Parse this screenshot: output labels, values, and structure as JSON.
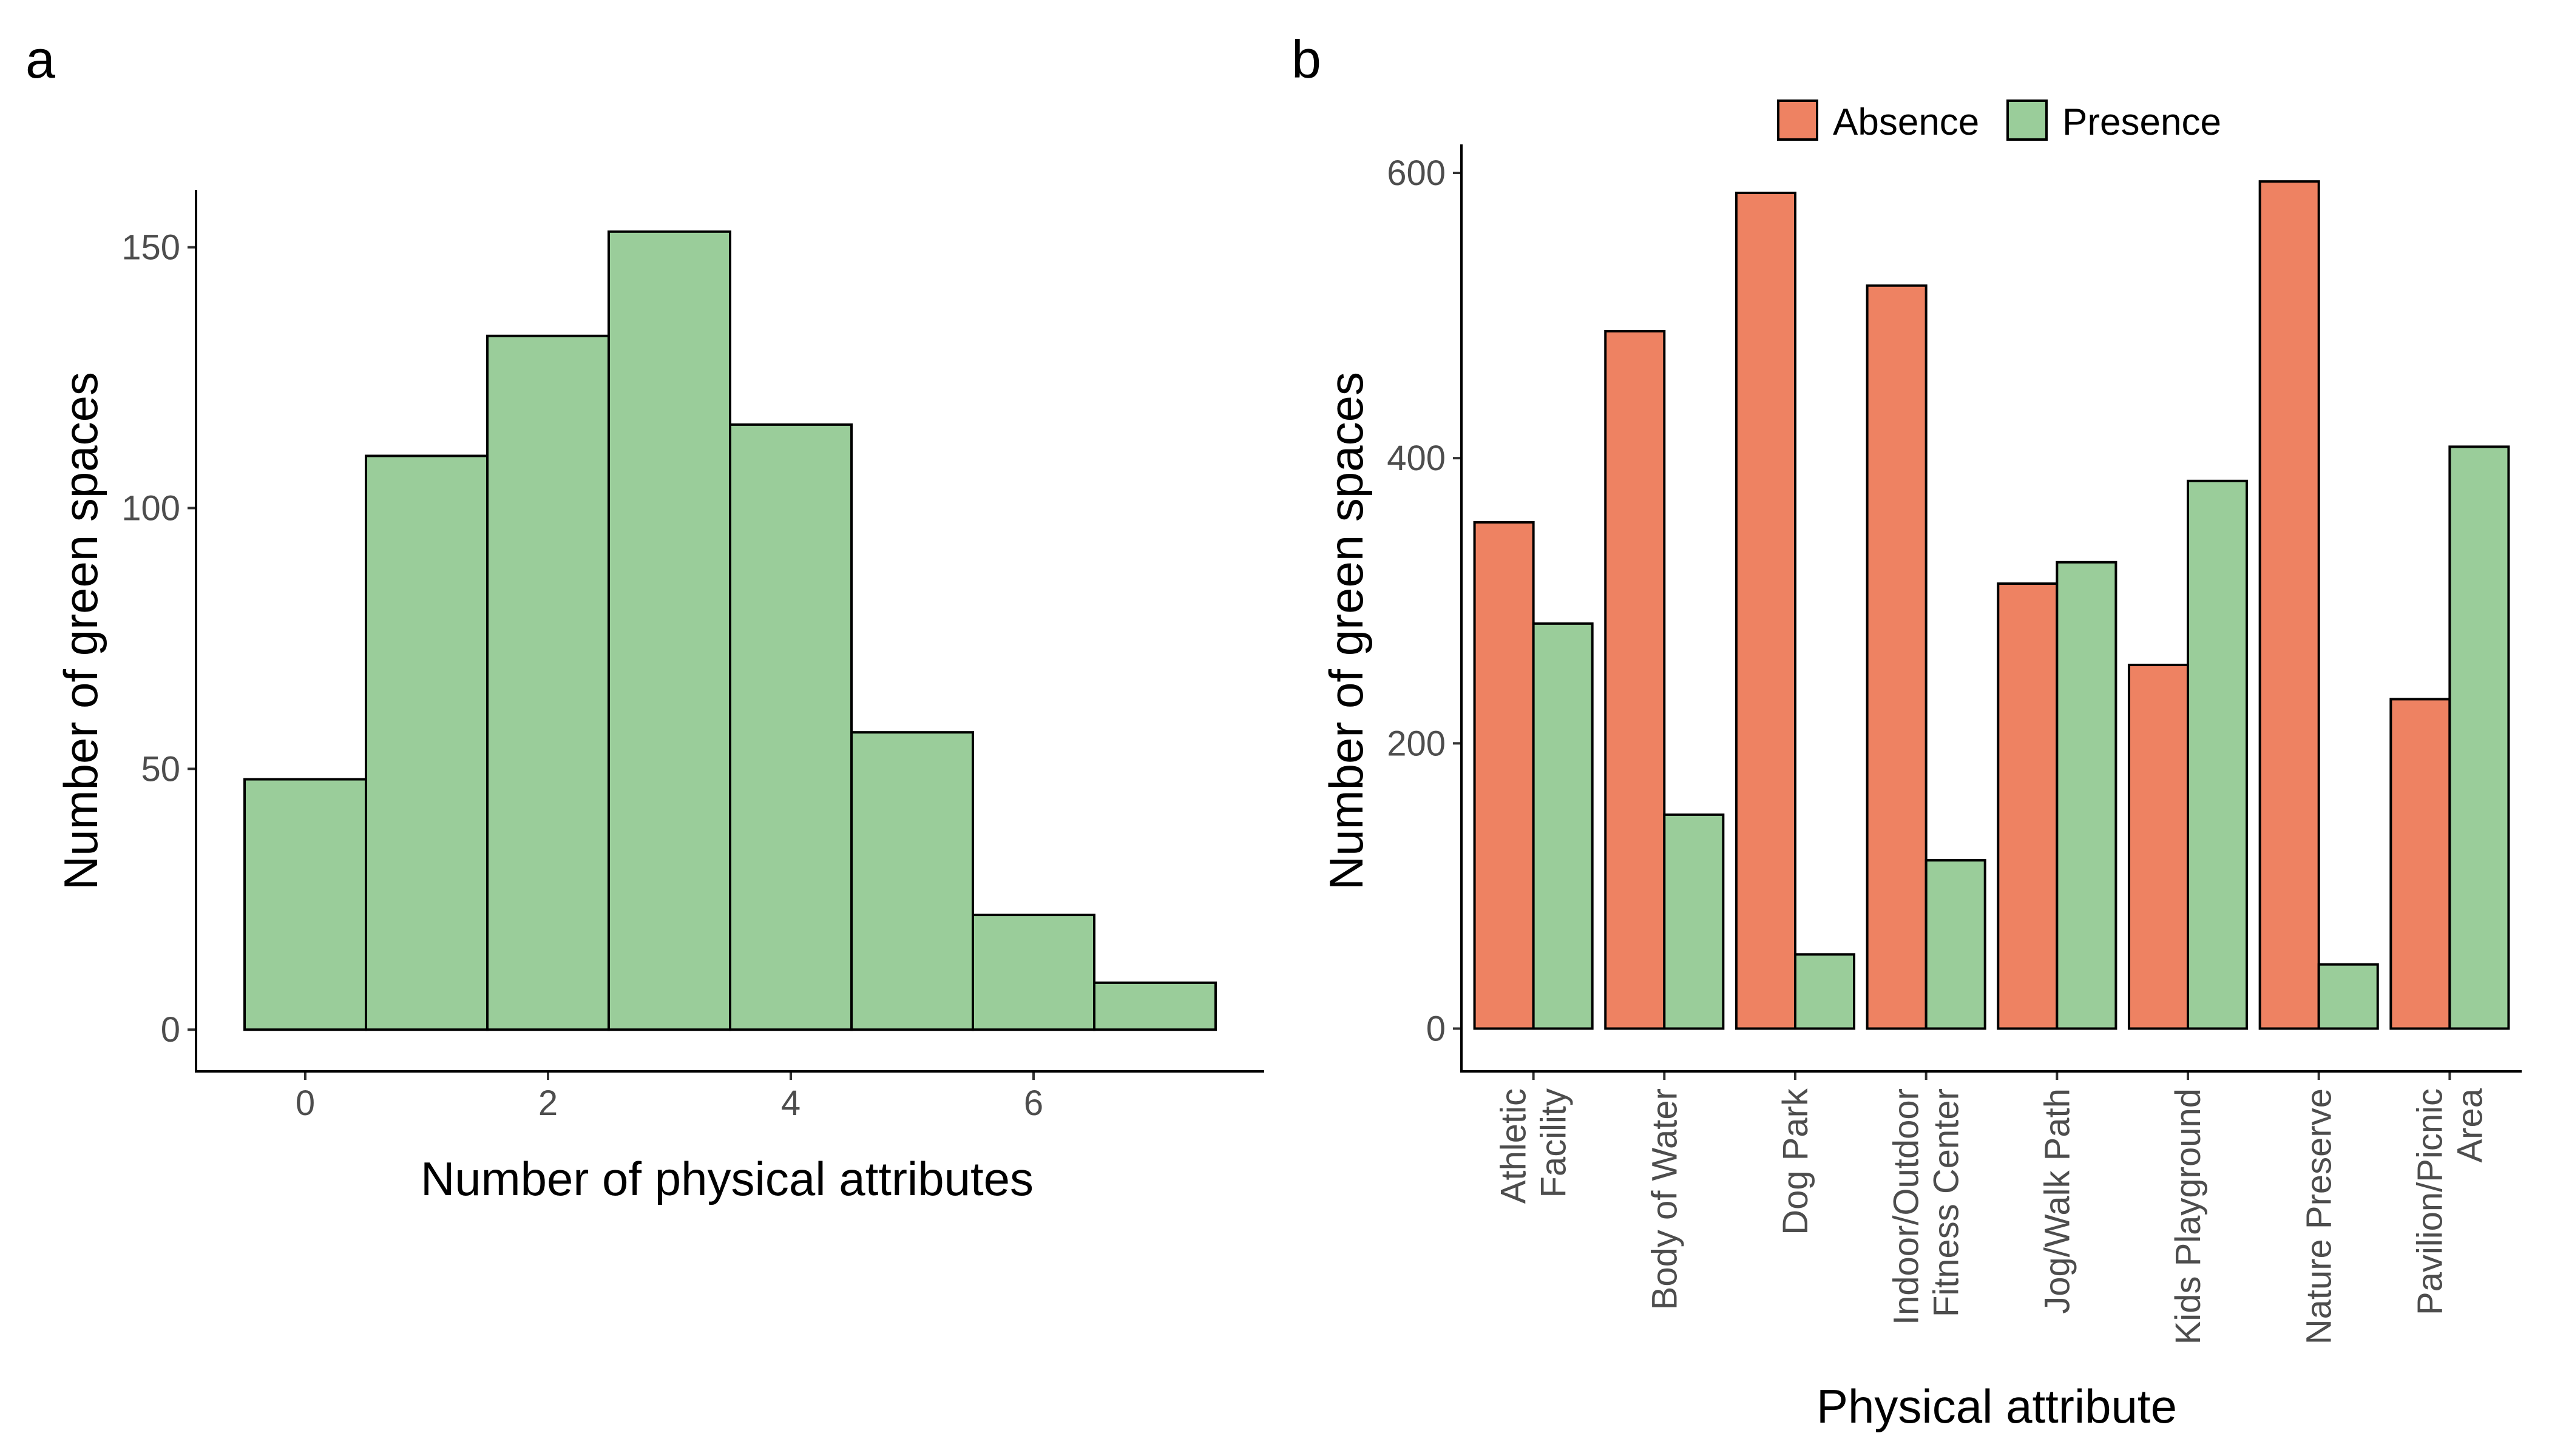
{
  "chart_data": [
    {
      "panel": "a",
      "type": "bar",
      "title": "",
      "xlabel": "Number of physical attributes",
      "ylabel": "Number of green spaces",
      "x": [
        0,
        1,
        2,
        3,
        4,
        5,
        6,
        7
      ],
      "values": [
        48,
        110,
        133,
        153,
        116,
        57,
        22,
        9
      ],
      "color": "#9ACD9A",
      "xticks": [
        0,
        2,
        4,
        6
      ],
      "yticks": [
        0,
        50,
        100,
        150
      ],
      "xlim": [
        -0.9,
        7.9
      ],
      "ylim": [
        -8,
        161
      ],
      "grid": false,
      "legend": "none"
    },
    {
      "panel": "b",
      "type": "bar",
      "title": "",
      "xlabel": "Physical attribute",
      "ylabel": "Number of green spaces",
      "categories": [
        [
          "Athletic",
          "Facility"
        ],
        [
          "Body of Water"
        ],
        [
          "Dog Park"
        ],
        [
          "Indoor/Outdoor",
          "Fitness Center"
        ],
        [
          "Jog/Walk Path"
        ],
        [
          "Kids Playground"
        ],
        [
          "Nature Preserve"
        ],
        [
          "Pavilion/Picnic",
          "Area"
        ]
      ],
      "series": [
        {
          "name": "Absence",
          "color": "#EE8262",
          "values": [
            355,
            489,
            586,
            521,
            312,
            255,
            594,
            231
          ]
        },
        {
          "name": "Presence",
          "color": "#9ACD9A",
          "values": [
            284,
            150,
            52,
            118,
            327,
            384,
            45,
            408
          ]
        }
      ],
      "yticks": [
        0,
        200,
        400,
        600
      ],
      "ylim": [
        -30,
        620
      ],
      "grid": false,
      "legend": "top"
    }
  ]
}
